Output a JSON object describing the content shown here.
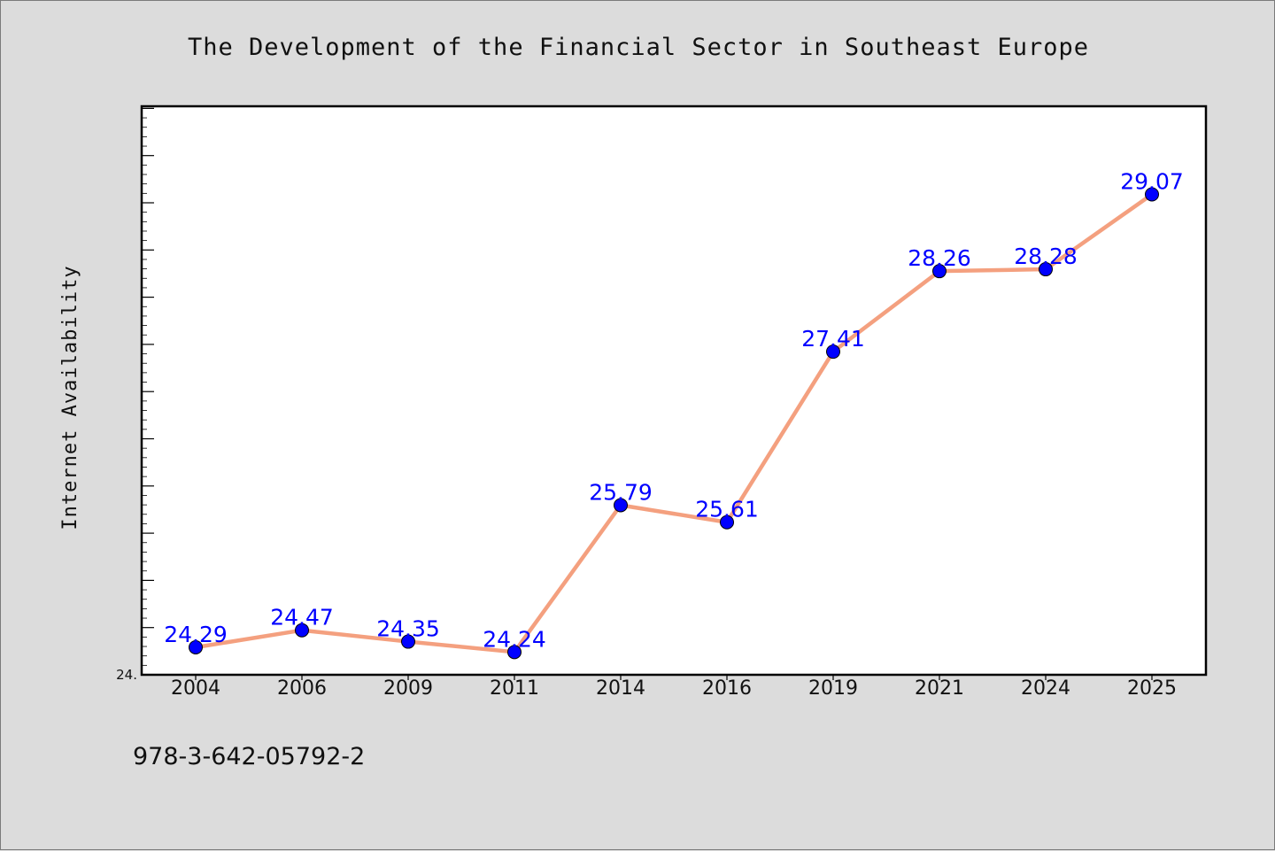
{
  "chart_data": {
    "type": "line",
    "title": "The Development of the Financial Sector in Southeast Europe",
    "xlabel": "",
    "ylabel": "Internet Availability",
    "categories": [
      "2004",
      "2006",
      "2009",
      "2011",
      "2014",
      "2016",
      "2019",
      "2021",
      "2024",
      "2025"
    ],
    "series": [
      {
        "values": [
          24.29,
          24.47,
          24.35,
          24.24,
          25.79,
          25.61,
          27.41,
          28.26,
          28.28,
          29.07
        ],
        "labels": [
          "24.29",
          "24.47",
          "24.35",
          "24.24",
          "25.79",
          "25.61",
          "27.41",
          "28.26",
          "28.28",
          "29.07"
        ],
        "line_color": "#f4a07f",
        "marker_color": "#0000ff"
      }
    ],
    "ylim": [
      24.0,
      30.0
    ],
    "y_tick_label": "24.",
    "grid": false,
    "legend": "none"
  },
  "footer": {
    "text": "978-3-642-05792-2"
  }
}
